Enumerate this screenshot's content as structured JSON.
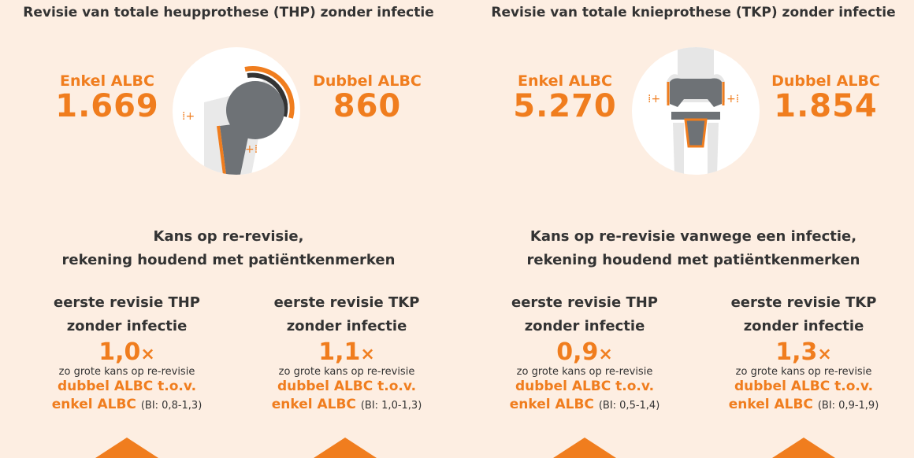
{
  "hip": {
    "title": "Revisie van totale heupprothese (THP) zonder infectie",
    "enkel_label": "Enkel ALBC",
    "enkel_value": "1.669",
    "dubbel_label": "Dubbel ALBC",
    "dubbel_value": "860"
  },
  "knee": {
    "title": "Revisie van totale knieprothese (TKP) zonder infectie",
    "enkel_label": "Enkel ALBC",
    "enkel_value": "5.270",
    "dubbel_label": "Dubbel ALBC",
    "dubbel_value": "1.854"
  },
  "left_section": {
    "heading_line1": "Kans op re-revisie,",
    "heading_line2": "rekening houdend met patiëntkenmerken"
  },
  "right_section": {
    "heading_line1": "Kans op re-revisie vanwege een infectie,",
    "heading_line2": "rekening houdend met patiëntkenmerken"
  },
  "columns": [
    {
      "head1": "eerste revisie THP",
      "head2": "zonder infectie",
      "ratio": "1,0",
      "x": "×",
      "text": "zo grote kans op re-revisie",
      "compare1": "dubbel ALBC t.o.v.",
      "compare2": "enkel ALBC",
      "ci": "(BI: 0,8-1,3)"
    },
    {
      "head1": "eerste revisie TKP",
      "head2": "zonder infectie",
      "ratio": "1,1",
      "x": "×",
      "text": "zo grote kans op re-revisie",
      "compare1": "dubbel ALBC t.o.v.",
      "compare2": "enkel ALBC",
      "ci": "(BI: 1,0-1,3)"
    },
    {
      "head1": "eerste revisie THP",
      "head2": "zonder infectie",
      "ratio": "0,9",
      "x": "×",
      "text": "zo grote kans op re-revisie",
      "compare1": "dubbel ALBC t.o.v.",
      "compare2": "enkel ALBC",
      "ci": "(BI: 0,5-1,4)"
    },
    {
      "head1": "eerste revisie TKP",
      "head2": "zonder infectie",
      "ratio": "1,3",
      "x": "×",
      "text": "zo grote kans op re-revisie",
      "compare1": "dubbel ALBC t.o.v.",
      "compare2": "enkel ALBC",
      "ci": "(BI: 0,9-1,9)"
    }
  ],
  "colors": {
    "accent": "#f07d1e",
    "background": "#fdeee2",
    "implant": "#6e7276",
    "bone": "#e6e6e6"
  },
  "icons": [
    "hip-prosthesis-icon",
    "knee-prosthesis-icon",
    "dots-plus-icon",
    "arrow-up-icon"
  ]
}
